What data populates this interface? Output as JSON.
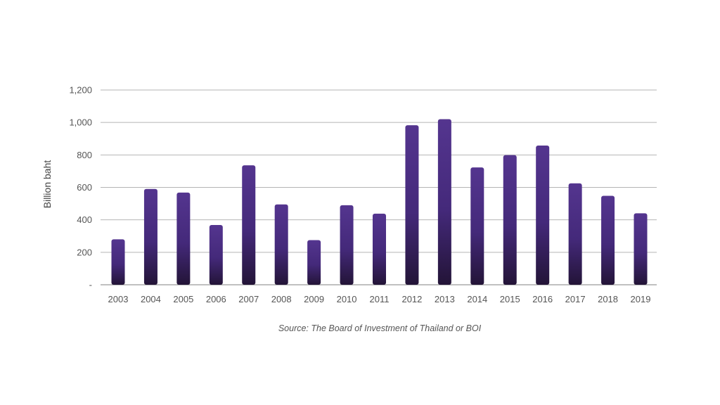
{
  "chart_data": {
    "type": "bar",
    "categories": [
      "2003",
      "2004",
      "2005",
      "2006",
      "2007",
      "2008",
      "2009",
      "2010",
      "2011",
      "2012",
      "2013",
      "2014",
      "2015",
      "2016",
      "2017",
      "2018",
      "2019"
    ],
    "values": [
      280,
      590,
      568,
      368,
      736,
      495,
      275,
      490,
      438,
      983,
      1020,
      723,
      799,
      858,
      625,
      548,
      440
    ],
    "ylabel": "Billion baht",
    "ylim": [
      0,
      1200
    ],
    "yticks": [
      0,
      200,
      400,
      600,
      800,
      1000,
      1200
    ],
    "ytick_labels": [
      "-",
      "200",
      "400",
      "600",
      "800",
      "1,000",
      "1,200"
    ],
    "source": "Source: The Board of Investment of Thailand or BOI",
    "grid": true,
    "colors": {
      "bar_top": "#54358f",
      "bar_bottom": "#231437",
      "grid": "#b4b4b4",
      "axis": "#9a9a9a",
      "text": "#555555"
    }
  }
}
